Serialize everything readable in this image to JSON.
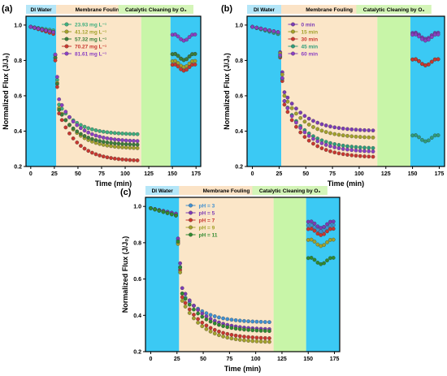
{
  "colors": {
    "di_water": "#3bc9f4",
    "membrane_fouling": "#fbe6c8",
    "catalytic_cleaning": "#c8f5a8",
    "label_box_di": "#b4e6f8",
    "label_box_mf": "#fbe3c6",
    "label_box_cc": "#d4f5b8"
  },
  "chart_data": [
    {
      "panel": "(a)",
      "type": "scatter",
      "xlabel": "Time (min)",
      "ylabel": "Normalized Flux (J/J₀)",
      "xlim": [
        -5,
        180
      ],
      "ylim": [
        0.2,
        1.05
      ],
      "xticks": [
        "0",
        "25",
        "50",
        "75",
        "100",
        "125",
        "150",
        "175"
      ],
      "yticks": [
        "0.2",
        "0.4",
        "0.6",
        "0.8",
        "1.0"
      ],
      "bands": [
        {
          "label": "DI Water",
          "x0": -5,
          "x1": 27,
          "kind": "di"
        },
        {
          "label": "Membrane Fouling",
          "x0": 27,
          "x1": 117,
          "kind": "mf"
        },
        {
          "label": "Catalytic Cleaning by O₃",
          "x0": 117,
          "x1": 148,
          "kind": "cc"
        },
        {
          "label": "",
          "x0": 148,
          "x1": 180,
          "kind": "di"
        }
      ],
      "legend_position": "top-center",
      "series": [
        {
          "name": "23.93 mg L⁻¹",
          "color": "#3fae7e",
          "x0": 0.99,
          "x1": 0.97,
          "f0": 0.55,
          "ff": 0.38,
          "c": 0.82
        },
        {
          "name": "41.12 mg L⁻¹",
          "color": "#a3a12b",
          "x0": 0.99,
          "x1": 0.96,
          "f0": 0.53,
          "ff": 0.3,
          "c": 0.78
        },
        {
          "name": "57.32 mg L⁻¹",
          "color": "#3a7d3a",
          "x0": 0.99,
          "x1": 0.96,
          "f0": 0.52,
          "ff": 0.32,
          "c": 0.82
        },
        {
          "name": "70.27 mg L⁻¹",
          "color": "#c8372f",
          "x0": 0.99,
          "x1": 0.95,
          "f0": 0.5,
          "ff": 0.23,
          "c": 0.76
        },
        {
          "name": "81.61 mg L⁻¹",
          "color": "#8a3fc2",
          "x0": 0.99,
          "x1": 0.96,
          "f0": 0.58,
          "ff": 0.34,
          "c": 0.93
        }
      ]
    },
    {
      "panel": "(b)",
      "type": "scatter",
      "xlabel": "Time (min)",
      "ylabel": "Normalized Flux (J/J₀)",
      "xlim": [
        -5,
        180
      ],
      "ylim": [
        0.2,
        1.05
      ],
      "xticks": [
        "0",
        "25",
        "50",
        "75",
        "100",
        "125",
        "150",
        "175"
      ],
      "yticks": [
        "0.2",
        "0.4",
        "0.6",
        "0.8",
        "1.0"
      ],
      "bands": [
        {
          "label": "DI Water",
          "x0": -5,
          "x1": 27,
          "kind": "di"
        },
        {
          "label": "Membrane Fouling",
          "x0": 27,
          "x1": 117,
          "kind": "mf"
        },
        {
          "label": "Catalytic Cleaning by O₃",
          "x0": 117,
          "x1": 148,
          "kind": "cc"
        },
        {
          "label": "",
          "x0": 148,
          "x1": 180,
          "kind": "di"
        }
      ],
      "legend_position": "top-center",
      "series": [
        {
          "name": "0 min",
          "color": "#7b3bb5",
          "x0": 0.99,
          "x1": 0.96,
          "f0": 0.62,
          "ff": 0.4,
          "c": 0.94
        },
        {
          "name": "15 min",
          "color": "#a3a12b",
          "x0": 0.99,
          "x1": 0.96,
          "f0": 0.6,
          "ff": 0.36,
          "c": 0.79
        },
        {
          "name": "30 min",
          "color": "#c8372f",
          "x0": 0.99,
          "x1": 0.95,
          "f0": 0.55,
          "ff": 0.25,
          "c": 0.79
        },
        {
          "name": "45 min",
          "color": "#2f9c7a",
          "x0": 0.99,
          "x1": 0.95,
          "f0": 0.57,
          "ff": 0.3,
          "c": 0.36
        },
        {
          "name": "60 min",
          "color": "#8a3fc2",
          "x0": 0.99,
          "x1": 0.96,
          "f0": 0.57,
          "ff": 0.28,
          "c": 0.93
        }
      ]
    },
    {
      "panel": "(c)",
      "type": "scatter",
      "xlabel": "Time (min)",
      "ylabel": "Normalized Flux (J/J₀)",
      "xlim": [
        -5,
        180
      ],
      "ylim": [
        0.2,
        1.05
      ],
      "xticks": [
        "0",
        "25",
        "50",
        "75",
        "100",
        "125",
        "150",
        "175"
      ],
      "yticks": [
        "0.2",
        "0.4",
        "0.6",
        "0.8",
        "1.0"
      ],
      "bands": [
        {
          "label": "DI Water",
          "x0": -5,
          "x1": 27,
          "kind": "di"
        },
        {
          "label": "Membrane Fouling",
          "x0": 27,
          "x1": 117,
          "kind": "mf"
        },
        {
          "label": "Catalytic Cleaning by O₃",
          "x0": 117,
          "x1": 148,
          "kind": "cc"
        },
        {
          "label": "",
          "x0": 148,
          "x1": 180,
          "kind": "di"
        }
      ],
      "legend_position": "top-center",
      "series": [
        {
          "name": "pH = 3",
          "color": "#3f8fd0",
          "x0": 0.99,
          "x1": 0.96,
          "f0": 0.52,
          "ff": 0.36,
          "c": 0.88
        },
        {
          "name": "pH = 5",
          "color": "#7b3bb5",
          "x0": 0.99,
          "x1": 0.96,
          "f0": 0.55,
          "ff": 0.32,
          "c": 0.9
        },
        {
          "name": "pH = 7",
          "color": "#c8372f",
          "x0": 0.99,
          "x1": 0.95,
          "f0": 0.5,
          "ff": 0.27,
          "c": 0.86
        },
        {
          "name": "pH = 9",
          "color": "#a3a12b",
          "x0": 0.99,
          "x1": 0.95,
          "f0": 0.48,
          "ff": 0.25,
          "c": 0.8
        },
        {
          "name": "pH = 11",
          "color": "#2f8a2f",
          "x0": 0.99,
          "x1": 0.95,
          "f0": 0.52,
          "ff": 0.31,
          "c": 0.7
        }
      ]
    }
  ]
}
